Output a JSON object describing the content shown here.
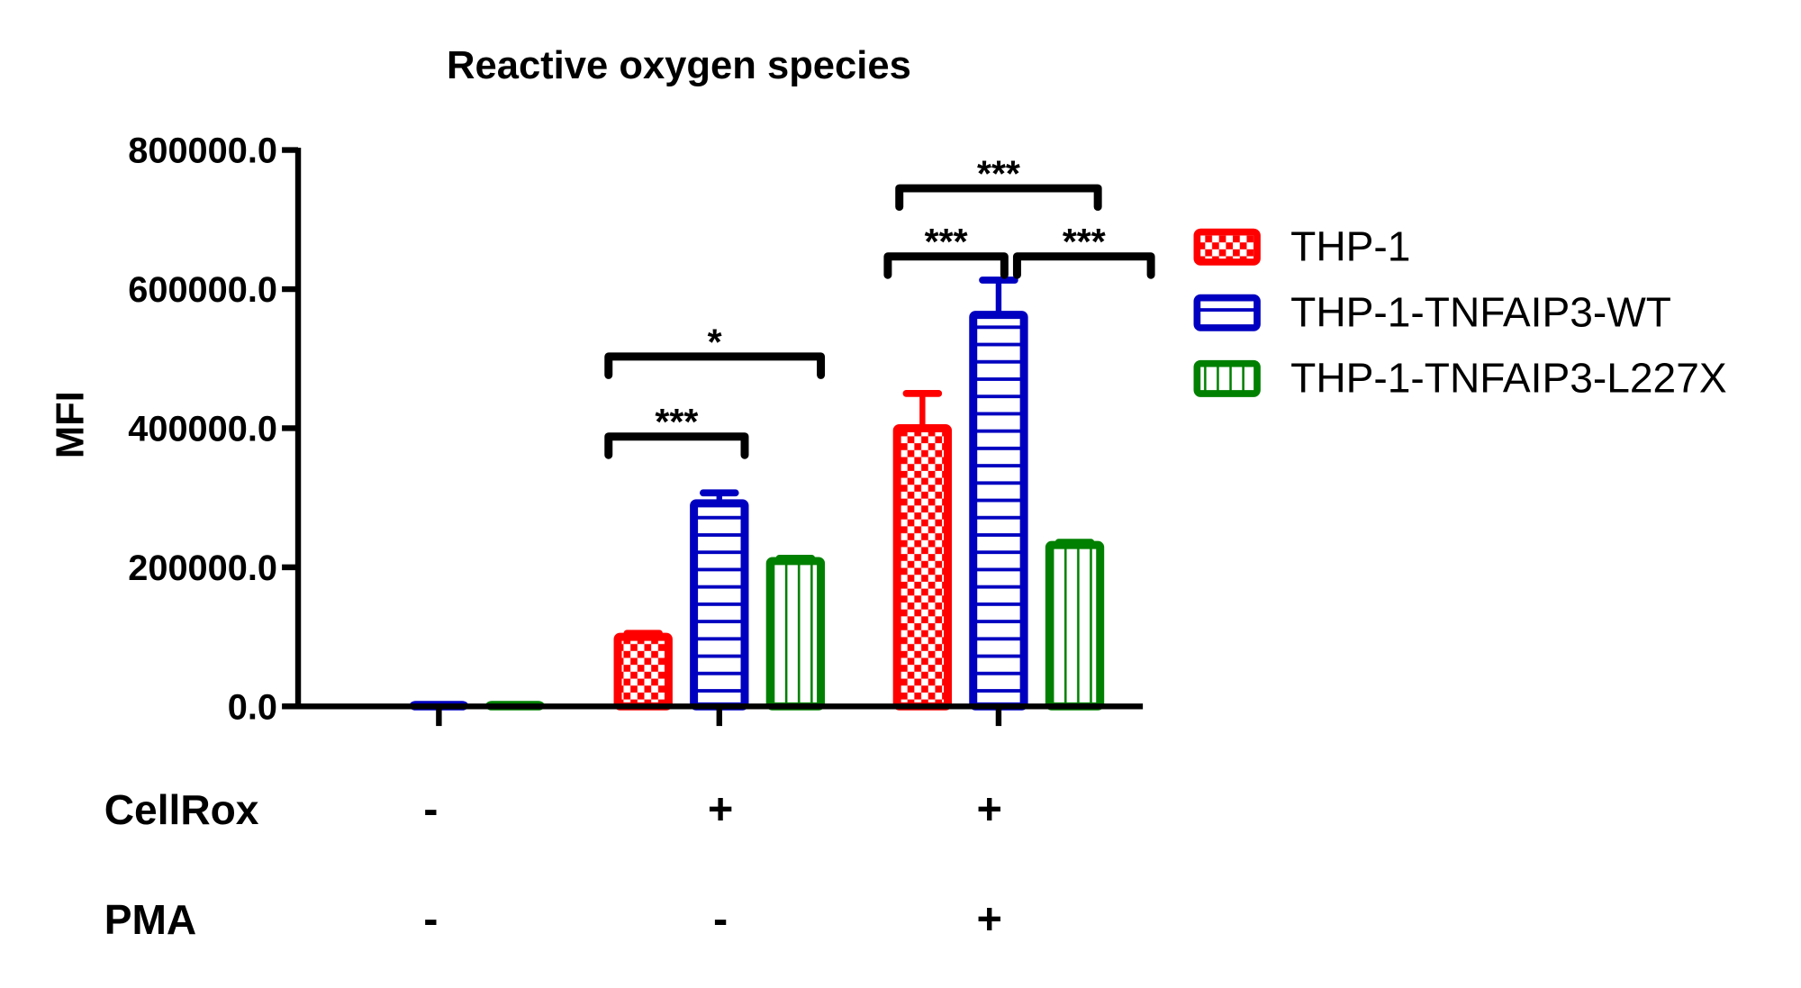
{
  "chart_data": {
    "type": "bar",
    "title": "Reactive oxygen species",
    "ylabel": "MFI",
    "xlabel": "",
    "ylim": [
      0,
      800000
    ],
    "yticks": [
      0,
      200000,
      400000,
      600000,
      800000
    ],
    "ytick_labels": [
      "0.0",
      "200000.0",
      "400000.0",
      "600000.0",
      "800000.0"
    ],
    "categories": [
      "CellRox - / PMA -",
      "CellRox + / PMA -",
      "CellRox + / PMA +"
    ],
    "series": [
      {
        "name": "THP-1",
        "color": "#ff0000",
        "pattern": "checker",
        "values": [
          0,
          100000,
          400000
        ],
        "errors": [
          0,
          5000,
          50000
        ]
      },
      {
        "name": "THP-1-TNFAIP3-WT",
        "color": "#0000c0",
        "pattern": "hlines",
        "values": [
          2000,
          292000,
          563000
        ],
        "errors": [
          0,
          15000,
          50000
        ]
      },
      {
        "name": "THP-1-TNFAIP3-L227X",
        "color": "#008000",
        "pattern": "vlines",
        "values": [
          2000,
          209000,
          232000
        ],
        "errors": [
          0,
          4000,
          4000
        ]
      }
    ],
    "legend_position": "right",
    "conditions": [
      {
        "label": "CellRox",
        "values": [
          "-",
          "+",
          "+"
        ]
      },
      {
        "label": "PMA",
        "values": [
          "-",
          "-",
          "+"
        ]
      }
    ],
    "significance": [
      {
        "group": 1,
        "from": 0,
        "to": 1,
        "level": 388000,
        "label": "***"
      },
      {
        "group": 1,
        "from": 0,
        "to": 2,
        "level": 503000,
        "label": "*"
      },
      {
        "group": 2,
        "from": 0,
        "to": 1,
        "level": 647000,
        "label": "***"
      },
      {
        "group": 2,
        "from": 1,
        "to": 2,
        "level": 647000,
        "label": "***"
      },
      {
        "group": 2,
        "from": 0,
        "to": 2,
        "level": 745000,
        "label": "***"
      }
    ]
  }
}
